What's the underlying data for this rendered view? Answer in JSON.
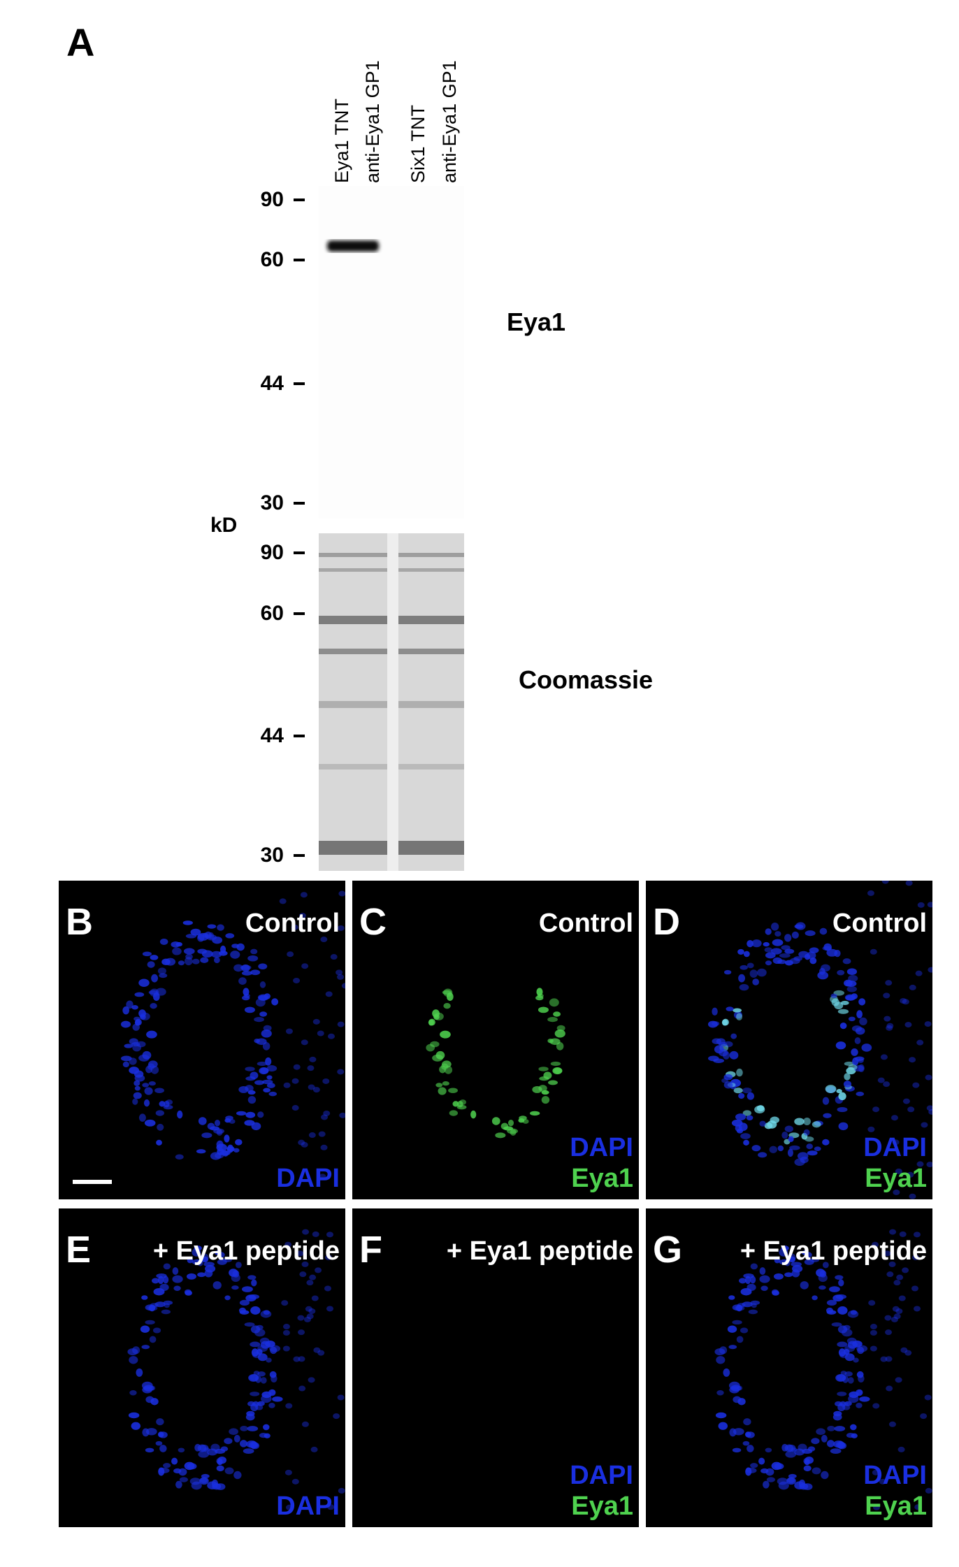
{
  "panel_a": {
    "letter": "A",
    "lanes": [
      "Eya1 TNT",
      "anti-Eya1 GP1",
      "Six1 TNT",
      "anti-Eya1 GP1"
    ],
    "unit": "kD",
    "western": {
      "label": "Eya1",
      "markers": [
        "90",
        "60",
        "44",
        "30"
      ]
    },
    "coomassie": {
      "label": "Coomassie",
      "markers": [
        "90",
        "60",
        "44",
        "30"
      ]
    }
  },
  "panels": [
    {
      "letter": "B",
      "title": "Control",
      "channels": [
        "DAPI"
      ],
      "scale_bar": true
    },
    {
      "letter": "C",
      "title": "Control",
      "channels": [
        "DAPI",
        "Eya1"
      ]
    },
    {
      "letter": "D",
      "title": "Control",
      "channels": [
        "DAPI",
        "Eya1"
      ]
    },
    {
      "letter": "E",
      "title": "+ Eya1 peptide",
      "channels": [
        "DAPI"
      ]
    },
    {
      "letter": "F",
      "title": "+ Eya1 peptide",
      "channels": [
        "DAPI",
        "Eya1"
      ]
    },
    {
      "letter": "G",
      "title": "+ Eya1 peptide",
      "channels": [
        "DAPI",
        "Eya1"
      ]
    }
  ],
  "colors": {
    "dapi": "#1a2fe0",
    "eya1": "#4fd24f",
    "background": "#000000"
  }
}
